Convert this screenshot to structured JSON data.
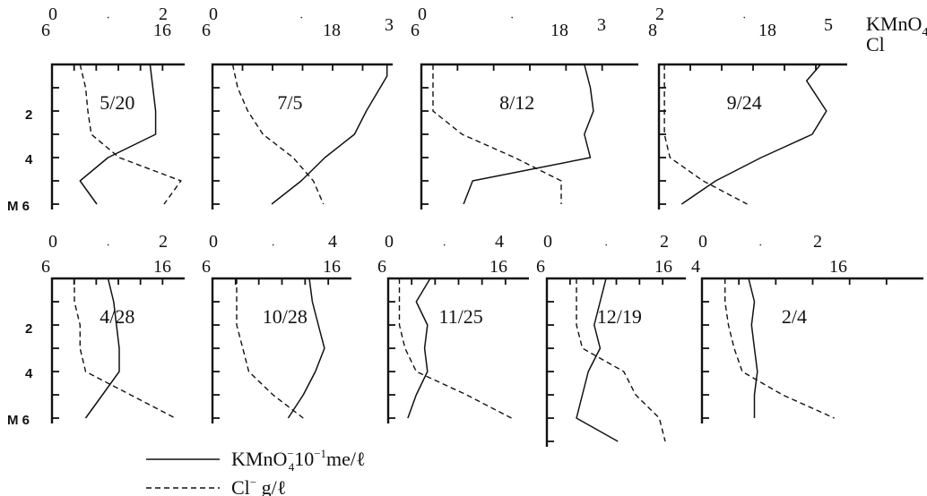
{
  "legend": {
    "kmno4_label": "KMnO",
    "kmno4_sub": "4",
    "kmno4_sup": "−",
    "kmno4_unit_a": "10",
    "kmno4_unit_sup": "−1",
    "kmno4_unit_b": "me/ℓ",
    "cl_label": "Cl",
    "cl_sup": "−",
    "cl_unit": " g/ℓ"
  },
  "series_labels": {
    "kmno4": "KMnO",
    "kmno4_sub": "4",
    "cl": "Cl"
  },
  "depth_axis": {
    "unit_prefix": "M",
    "row1_ticks": [
      "2",
      "4",
      "M 6"
    ],
    "row2_ticks": [
      "2",
      "4",
      "M 6"
    ]
  },
  "panels": [
    {
      "date": "5/20",
      "kmno_ticks": [
        "0",
        "2"
      ],
      "cl_ticks": [
        "6",
        "16"
      ]
    },
    {
      "date": "7/5",
      "kmno_ticks": [
        "0",
        "3"
      ],
      "cl_ticks": [
        "6",
        "18"
      ]
    },
    {
      "date": "8/12",
      "kmno_ticks": [
        "0",
        "3"
      ],
      "cl_ticks": [
        "6",
        "18"
      ]
    },
    {
      "date": "9/24",
      "kmno_ticks": [
        "2",
        "5"
      ],
      "cl_ticks": [
        "8",
        "18"
      ]
    },
    {
      "date": "4/28",
      "kmno_ticks": [
        "0",
        "2"
      ],
      "cl_ticks": [
        "6",
        "16"
      ]
    },
    {
      "date": "10/28",
      "kmno_ticks": [
        "0",
        "4"
      ],
      "cl_ticks": [
        "6",
        "16"
      ]
    },
    {
      "date": "11/25",
      "kmno_ticks": [
        "0",
        "4"
      ],
      "cl_ticks": [
        "6",
        "16"
      ]
    },
    {
      "date": "12/19",
      "kmno_ticks": [
        "0",
        "2"
      ],
      "cl_ticks": [
        "6",
        "16"
      ]
    },
    {
      "date": "2/4",
      "kmno_ticks": [
        "0",
        "2"
      ],
      "cl_ticks": [
        "4",
        "16"
      ]
    }
  ],
  "chart_data": {
    "type": "line",
    "depth_unit": "M",
    "series_meaning": [
      "KMnO4 10^-1 me/ℓ",
      "Cl g/ℓ"
    ],
    "panels": [
      {
        "date": "5/20",
        "kmno4": [
          [
            0,
            1.75
          ],
          [
            1,
            1.8
          ],
          [
            2,
            1.85
          ],
          [
            3,
            1.85
          ],
          [
            4,
            1.0
          ],
          [
            5,
            0.5
          ],
          [
            6,
            0.8
          ]
        ],
        "cl": [
          [
            0,
            8.5
          ],
          [
            1,
            9.0
          ],
          [
            2,
            9.2
          ],
          [
            3,
            9.5
          ],
          [
            4,
            12.0
          ],
          [
            5,
            17.5
          ],
          [
            6,
            16.0
          ]
        ]
      },
      {
        "date": "7/5",
        "kmno4": [
          [
            0,
            2.95
          ],
          [
            0.5,
            2.95
          ],
          [
            2,
            2.6
          ],
          [
            3,
            2.4
          ],
          [
            4,
            1.9
          ],
          [
            5,
            1.5
          ],
          [
            6,
            1.0
          ]
        ],
        "cl": [
          [
            0,
            8.0
          ],
          [
            1,
            8.5
          ],
          [
            2,
            9.5
          ],
          [
            3,
            11.0
          ],
          [
            4,
            14.0
          ],
          [
            5,
            16.0
          ],
          [
            6,
            17.0
          ]
        ]
      },
      {
        "date": "8/12",
        "kmno4": [
          [
            0,
            2.7
          ],
          [
            1,
            2.8
          ],
          [
            2,
            2.85
          ],
          [
            3,
            2.7
          ],
          [
            4,
            2.8
          ],
          [
            5,
            0.85
          ],
          [
            6,
            0.7
          ]
        ],
        "cl": [
          [
            0,
            7.0
          ],
          [
            1,
            7.0
          ],
          [
            2,
            7.0
          ],
          [
            3,
            9.5
          ],
          [
            4,
            14.0
          ],
          [
            5,
            18.0
          ],
          [
            6,
            18.0
          ]
        ]
      },
      {
        "date": "9/24",
        "kmno4": [
          [
            0,
            4.85
          ],
          [
            0.7,
            4.6
          ],
          [
            2,
            4.95
          ],
          [
            3,
            4.7
          ],
          [
            4,
            3.8
          ],
          [
            5,
            3.0
          ],
          [
            6,
            2.4
          ]
        ],
        "cl": [
          [
            0,
            8.5
          ],
          [
            1,
            8.5
          ],
          [
            2,
            8.5
          ],
          [
            3,
            8.5
          ],
          [
            4,
            9.0
          ],
          [
            5,
            12.0
          ],
          [
            6,
            16.0
          ]
        ]
      },
      {
        "date": "4/28",
        "kmno4": [
          [
            0,
            1.0
          ],
          [
            1,
            1.1
          ],
          [
            2,
            1.15
          ],
          [
            3,
            1.2
          ],
          [
            4,
            1.2
          ],
          [
            5,
            0.9
          ],
          [
            6,
            0.6
          ]
        ],
        "cl": [
          [
            0,
            8.0
          ],
          [
            1,
            8.0
          ],
          [
            2,
            8.5
          ],
          [
            3,
            8.5
          ],
          [
            4,
            9.0
          ],
          [
            5,
            13.0
          ],
          [
            6,
            17.0
          ]
        ]
      },
      {
        "date": "10/28",
        "kmno4": [
          [
            0,
            3.2
          ],
          [
            1,
            3.3
          ],
          [
            2,
            3.5
          ],
          [
            3,
            3.7
          ],
          [
            4,
            3.4
          ],
          [
            5,
            3.0
          ],
          [
            6,
            2.5
          ]
        ],
        "cl": [
          [
            0,
            8.0
          ],
          [
            1,
            8.0
          ],
          [
            2,
            8.0
          ],
          [
            3,
            8.5
          ],
          [
            4,
            9.0
          ],
          [
            5,
            11.0
          ],
          [
            6,
            13.5
          ]
        ]
      },
      {
        "date": "11/25",
        "kmno4": [
          [
            0,
            1.5
          ],
          [
            1,
            1.0
          ],
          [
            2,
            1.4
          ],
          [
            3,
            1.3
          ],
          [
            4,
            1.4
          ],
          [
            5,
            1.0
          ],
          [
            6,
            0.7
          ]
        ],
        "cl": [
          [
            0,
            7.0
          ],
          [
            1,
            7.0
          ],
          [
            2,
            7.0
          ],
          [
            3,
            7.5
          ],
          [
            4,
            8.5
          ],
          [
            5,
            13.0
          ],
          [
            6,
            17.0
          ]
        ]
      },
      {
        "date": "12/19",
        "kmno4": [
          [
            0,
            1.0
          ],
          [
            1,
            0.9
          ],
          [
            2,
            0.8
          ],
          [
            3,
            0.9
          ],
          [
            4,
            0.7
          ],
          [
            5,
            0.6
          ],
          [
            6,
            0.5
          ],
          [
            7,
            1.2
          ]
        ],
        "cl": [
          [
            0,
            8.5
          ],
          [
            1,
            8.5
          ],
          [
            2,
            8.5
          ],
          [
            3,
            9.0
          ],
          [
            4,
            12.5
          ],
          [
            5,
            13.5
          ],
          [
            6,
            15.5
          ],
          [
            7,
            16.0
          ]
        ]
      },
      {
        "date": "2/4",
        "kmno4": [
          [
            0,
            0.8
          ],
          [
            1,
            0.9
          ],
          [
            2,
            0.85
          ],
          [
            3,
            0.9
          ],
          [
            4,
            0.95
          ],
          [
            5,
            0.9
          ],
          [
            6,
            0.9
          ]
        ],
        "cl": [
          [
            0,
            6.0
          ],
          [
            1,
            6.0
          ],
          [
            2,
            6.3
          ],
          [
            3,
            6.8
          ],
          [
            4,
            7.5
          ],
          [
            5,
            11.0
          ],
          [
            6,
            15.5
          ]
        ]
      }
    ]
  }
}
